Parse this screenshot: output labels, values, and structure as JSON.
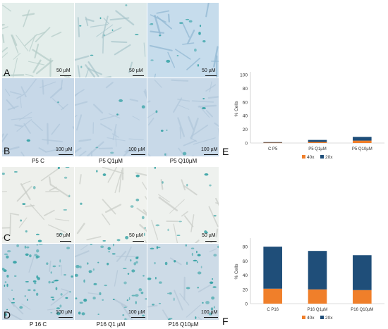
{
  "panels": {
    "A": {
      "letter": "A",
      "scale": "50 µM"
    },
    "B": {
      "letter": "B",
      "scale": "100 µM"
    },
    "C": {
      "letter": "C",
      "scale": "50 µM"
    },
    "D": {
      "letter": "D",
      "scale": "100 µM"
    },
    "E": {
      "letter": "E"
    },
    "F": {
      "letter": "F"
    }
  },
  "top_columns": [
    "P5 C",
    "P5 Q1µM",
    "P5 Q10µM"
  ],
  "bottom_columns": [
    "P 16 C",
    "P16 Q1 µM",
    "P16 Q10µM"
  ],
  "colors": {
    "orange": "#f07f2a",
    "navy": "#1f4e79",
    "stain": "#2a9ea0",
    "bg_blue": "#cfe0ec",
    "bg_light": "#eef1ee"
  },
  "chart_data": [
    {
      "type": "bar",
      "panel": "E",
      "categories": [
        "C P5",
        "P5 Q1µM",
        "P5 Q10µM"
      ],
      "series": [
        {
          "name": "40x",
          "values": [
            0.5,
            1.5,
            3.5
          ]
        },
        {
          "name": "20x",
          "values": [
            0.8,
            3.0,
            5.5
          ]
        }
      ],
      "ylabel": "% Cells",
      "yticks": [
        0,
        20,
        40,
        60,
        80,
        100
      ],
      "ylim": [
        0,
        100
      ],
      "stacked": true,
      "legend": "bottom"
    },
    {
      "type": "bar",
      "panel": "F",
      "categories": [
        "C P16",
        "P16 Q1µM",
        "P16 Q10µM"
      ],
      "series": [
        {
          "name": "40x",
          "values": [
            21,
            20,
            19
          ]
        },
        {
          "name": "20x",
          "values": [
            59,
            54,
            49
          ]
        }
      ],
      "ylabel": "% Cells",
      "yticks": [
        0,
        20,
        40,
        60,
        80
      ],
      "ylim": [
        0,
        90
      ],
      "stacked": true,
      "legend": "bottom"
    }
  ]
}
